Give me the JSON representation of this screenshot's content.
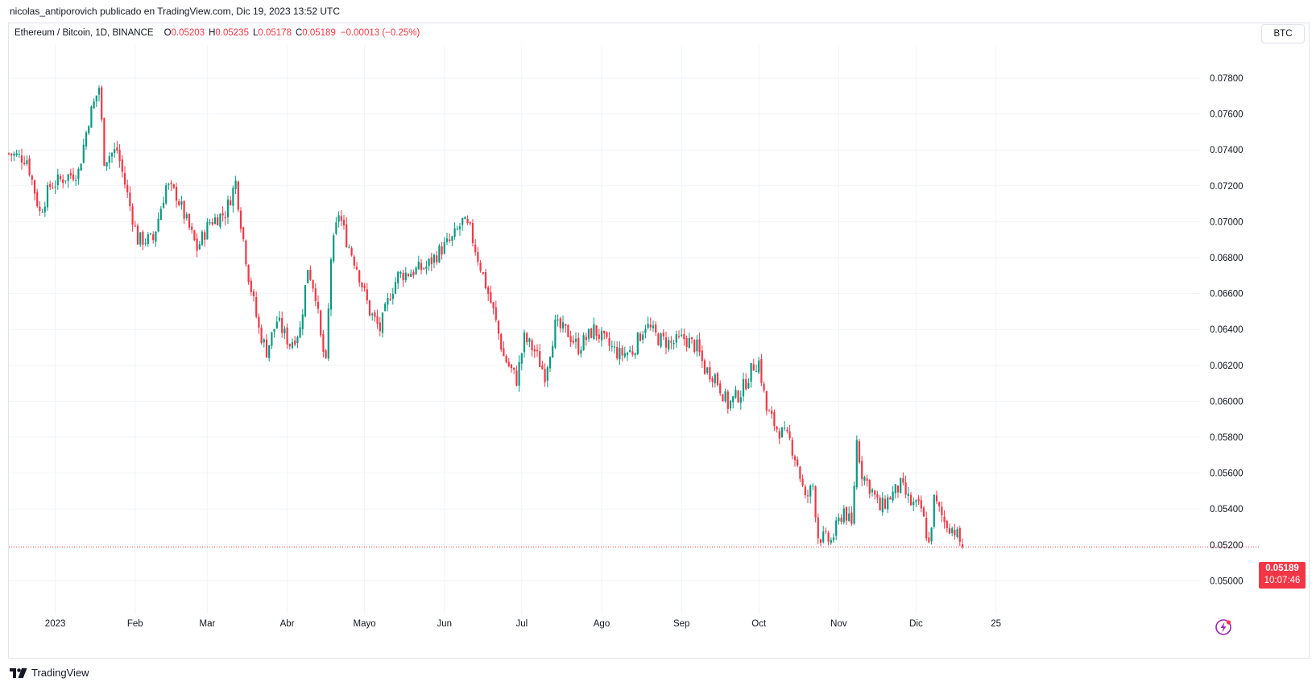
{
  "header": {
    "publisher_line": "nicolas_antiporovich publicado en TradingView.com, Dic 19, 2023 13:52 UTC"
  },
  "legend": {
    "symbol": "Ethereum / Bitcoin, 1D, BINANCE",
    "open_label": "O",
    "open": "0.05203",
    "high_label": "H",
    "high": "0.05235",
    "low_label": "L",
    "low": "0.05178",
    "close_label": "C",
    "close": "0.05189",
    "change": "−0.00013 (−0.25%)"
  },
  "currency_button": "BTC",
  "last_price": {
    "price": "0.05189",
    "countdown": "10:07:46"
  },
  "footer": {
    "brand": "TradingView"
  },
  "colors": {
    "up": "#089981",
    "down": "#f23645",
    "grid": "#f0f3fa",
    "text": "#131722",
    "last_price_line": "#f23645",
    "bolt_icon": "#9c27b0"
  },
  "chart_data": {
    "type": "candlestick",
    "title": "Ethereum / Bitcoin, 1D, BINANCE",
    "y_axis_ticks": [
      "0.07800",
      "0.07600",
      "0.07400",
      "0.07200",
      "0.07000",
      "0.06800",
      "0.06600",
      "0.06400",
      "0.06200",
      "0.06000",
      "0.05800",
      "0.05600",
      "0.05400",
      "0.05200",
      "0.05000"
    ],
    "ylim": [
      0.0484,
      0.0798
    ],
    "x_axis_labels": [
      "2023",
      "Feb",
      "Mar",
      "Abr",
      "Mayo",
      "Jun",
      "Jul",
      "Ago",
      "Sep",
      "Oct",
      "Nov",
      "Dic",
      "25"
    ],
    "grid": true,
    "last_close": 0.05189,
    "approx_close_path": [
      {
        "date": "2022-12-14",
        "close": 0.0738
      },
      {
        "date": "2022-12-21",
        "close": 0.0735
      },
      {
        "date": "2022-12-26",
        "close": 0.0705
      },
      {
        "date": "2022-12-30",
        "close": 0.072
      },
      {
        "date": "2023-01-05",
        "close": 0.0725
      },
      {
        "date": "2023-01-10",
        "close": 0.0728
      },
      {
        "date": "2023-01-14",
        "close": 0.0757
      },
      {
        "date": "2023-01-18",
        "close": 0.0775
      },
      {
        "date": "2023-01-20",
        "close": 0.0735
      },
      {
        "date": "2023-01-25",
        "close": 0.074
      },
      {
        "date": "2023-01-29",
        "close": 0.0715
      },
      {
        "date": "2023-02-02",
        "close": 0.069
      },
      {
        "date": "2023-02-08",
        "close": 0.069
      },
      {
        "date": "2023-02-13",
        "close": 0.072
      },
      {
        "date": "2023-02-17",
        "close": 0.0715
      },
      {
        "date": "2023-02-21",
        "close": 0.07
      },
      {
        "date": "2023-02-25",
        "close": 0.0685
      },
      {
        "date": "2023-03-02",
        "close": 0.07
      },
      {
        "date": "2023-03-08",
        "close": 0.0705
      },
      {
        "date": "2023-03-12",
        "close": 0.0722
      },
      {
        "date": "2023-03-14",
        "close": 0.07
      },
      {
        "date": "2023-03-17",
        "close": 0.067
      },
      {
        "date": "2023-03-21",
        "close": 0.064
      },
      {
        "date": "2023-03-24",
        "close": 0.0628
      },
      {
        "date": "2023-03-28",
        "close": 0.0645
      },
      {
        "date": "2023-04-02",
        "close": 0.0632
      },
      {
        "date": "2023-04-06",
        "close": 0.064
      },
      {
        "date": "2023-04-09",
        "close": 0.0675
      },
      {
        "date": "2023-04-12",
        "close": 0.066
      },
      {
        "date": "2023-04-14",
        "close": 0.0635
      },
      {
        "date": "2023-04-16",
        "close": 0.062
      },
      {
        "date": "2023-04-18",
        "close": 0.068
      },
      {
        "date": "2023-04-21",
        "close": 0.0705
      },
      {
        "date": "2023-04-24",
        "close": 0.069
      },
      {
        "date": "2023-04-28",
        "close": 0.0675
      },
      {
        "date": "2023-05-03",
        "close": 0.065
      },
      {
        "date": "2023-05-07",
        "close": 0.064
      },
      {
        "date": "2023-05-11",
        "close": 0.066
      },
      {
        "date": "2023-05-14",
        "close": 0.067
      },
      {
        "date": "2023-05-19",
        "close": 0.0672
      },
      {
        "date": "2023-05-25",
        "close": 0.0675
      },
      {
        "date": "2023-05-31",
        "close": 0.0685
      },
      {
        "date": "2023-06-04",
        "close": 0.069
      },
      {
        "date": "2023-06-08",
        "close": 0.07
      },
      {
        "date": "2023-06-11",
        "close": 0.0695
      },
      {
        "date": "2023-06-14",
        "close": 0.068
      },
      {
        "date": "2023-06-17",
        "close": 0.0665
      },
      {
        "date": "2023-06-20",
        "close": 0.065
      },
      {
        "date": "2023-06-24",
        "close": 0.0625
      },
      {
        "date": "2023-06-29",
        "close": 0.0612
      },
      {
        "date": "2023-07-02",
        "close": 0.0635
      },
      {
        "date": "2023-07-06",
        "close": 0.0628
      },
      {
        "date": "2023-07-10",
        "close": 0.0615
      },
      {
        "date": "2023-07-14",
        "close": 0.0642
      },
      {
        "date": "2023-07-19",
        "close": 0.0638
      },
      {
        "date": "2023-07-23",
        "close": 0.063
      },
      {
        "date": "2023-07-29",
        "close": 0.064
      },
      {
        "date": "2023-08-03",
        "close": 0.0632
      },
      {
        "date": "2023-08-08",
        "close": 0.0626
      },
      {
        "date": "2023-08-13",
        "close": 0.0628
      },
      {
        "date": "2023-08-18",
        "close": 0.0643
      },
      {
        "date": "2023-08-23",
        "close": 0.0635
      },
      {
        "date": "2023-08-28",
        "close": 0.0632
      },
      {
        "date": "2023-09-02",
        "close": 0.0635
      },
      {
        "date": "2023-09-07",
        "close": 0.063
      },
      {
        "date": "2023-09-10",
        "close": 0.0618
      },
      {
        "date": "2023-09-14",
        "close": 0.0614
      },
      {
        "date": "2023-09-19",
        "close": 0.0598
      },
      {
        "date": "2023-09-24",
        "close": 0.0605
      },
      {
        "date": "2023-09-29",
        "close": 0.062
      },
      {
        "date": "2023-10-01",
        "close": 0.0622
      },
      {
        "date": "2023-10-04",
        "close": 0.0595
      },
      {
        "date": "2023-10-08",
        "close": 0.0585
      },
      {
        "date": "2023-10-13",
        "close": 0.0578
      },
      {
        "date": "2023-10-16",
        "close": 0.0565
      },
      {
        "date": "2023-10-19",
        "close": 0.0545
      },
      {
        "date": "2023-10-22",
        "close": 0.0553
      },
      {
        "date": "2023-10-24",
        "close": 0.0525
      },
      {
        "date": "2023-10-29",
        "close": 0.0522
      },
      {
        "date": "2023-11-03",
        "close": 0.054
      },
      {
        "date": "2023-11-06",
        "close": 0.053
      },
      {
        "date": "2023-11-08",
        "close": 0.0578
      },
      {
        "date": "2023-11-10",
        "close": 0.056
      },
      {
        "date": "2023-11-14",
        "close": 0.055
      },
      {
        "date": "2023-11-17",
        "close": 0.054
      },
      {
        "date": "2023-11-21",
        "close": 0.0547
      },
      {
        "date": "2023-11-25",
        "close": 0.0553
      },
      {
        "date": "2023-11-29",
        "close": 0.0543
      },
      {
        "date": "2023-12-03",
        "close": 0.054
      },
      {
        "date": "2023-12-06",
        "close": 0.052
      },
      {
        "date": "2023-12-08",
        "close": 0.0545
      },
      {
        "date": "2023-12-12",
        "close": 0.0533
      },
      {
        "date": "2023-12-16",
        "close": 0.0528
      },
      {
        "date": "2023-12-19",
        "close": 0.05189
      }
    ]
  }
}
